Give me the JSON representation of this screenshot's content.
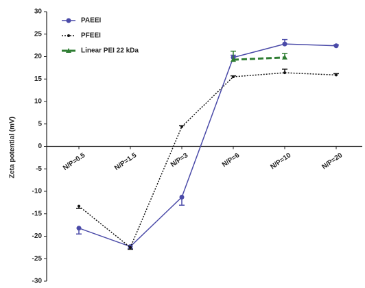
{
  "chart_data": {
    "type": "line",
    "y_label": "Zeta potential (mV)",
    "categories": [
      "N/P=0.5",
      "N/P=1.5",
      "N/P=3",
      "N/P=6",
      "N/P=10",
      "N/P=20"
    ],
    "ylim": [
      -30,
      30
    ],
    "yticks": [
      -30,
      -25,
      -20,
      -15,
      -10,
      -5,
      0,
      5,
      10,
      15,
      20,
      25,
      30
    ],
    "legend": "upper left",
    "series": [
      {
        "name": "PAEEI",
        "color": "#4a4aa8",
        "dash": "solid",
        "marker": "circle",
        "values": [
          -18.2,
          -22.3,
          -11.3,
          19.8,
          22.8,
          22.4
        ],
        "errors": [
          1.3,
          0.5,
          1.8,
          0.5,
          1.0,
          0.2
        ]
      },
      {
        "name": "PFEEI",
        "color": "#111111",
        "dash": "dotted",
        "marker": "dot",
        "values": [
          -13.3,
          -22.5,
          4.4,
          15.5,
          16.4,
          15.9
        ],
        "errors": [
          0.5,
          0.4,
          0.2,
          0.2,
          0.8,
          0.3
        ]
      },
      {
        "name": "Linear PEI 22 kDa",
        "color": "#2e7d32",
        "dash": "dashed",
        "marker": "triangle",
        "values": [
          null,
          null,
          null,
          19.3,
          19.8,
          null
        ],
        "errors": [
          null,
          null,
          null,
          1.9,
          0.9,
          null
        ]
      }
    ]
  }
}
